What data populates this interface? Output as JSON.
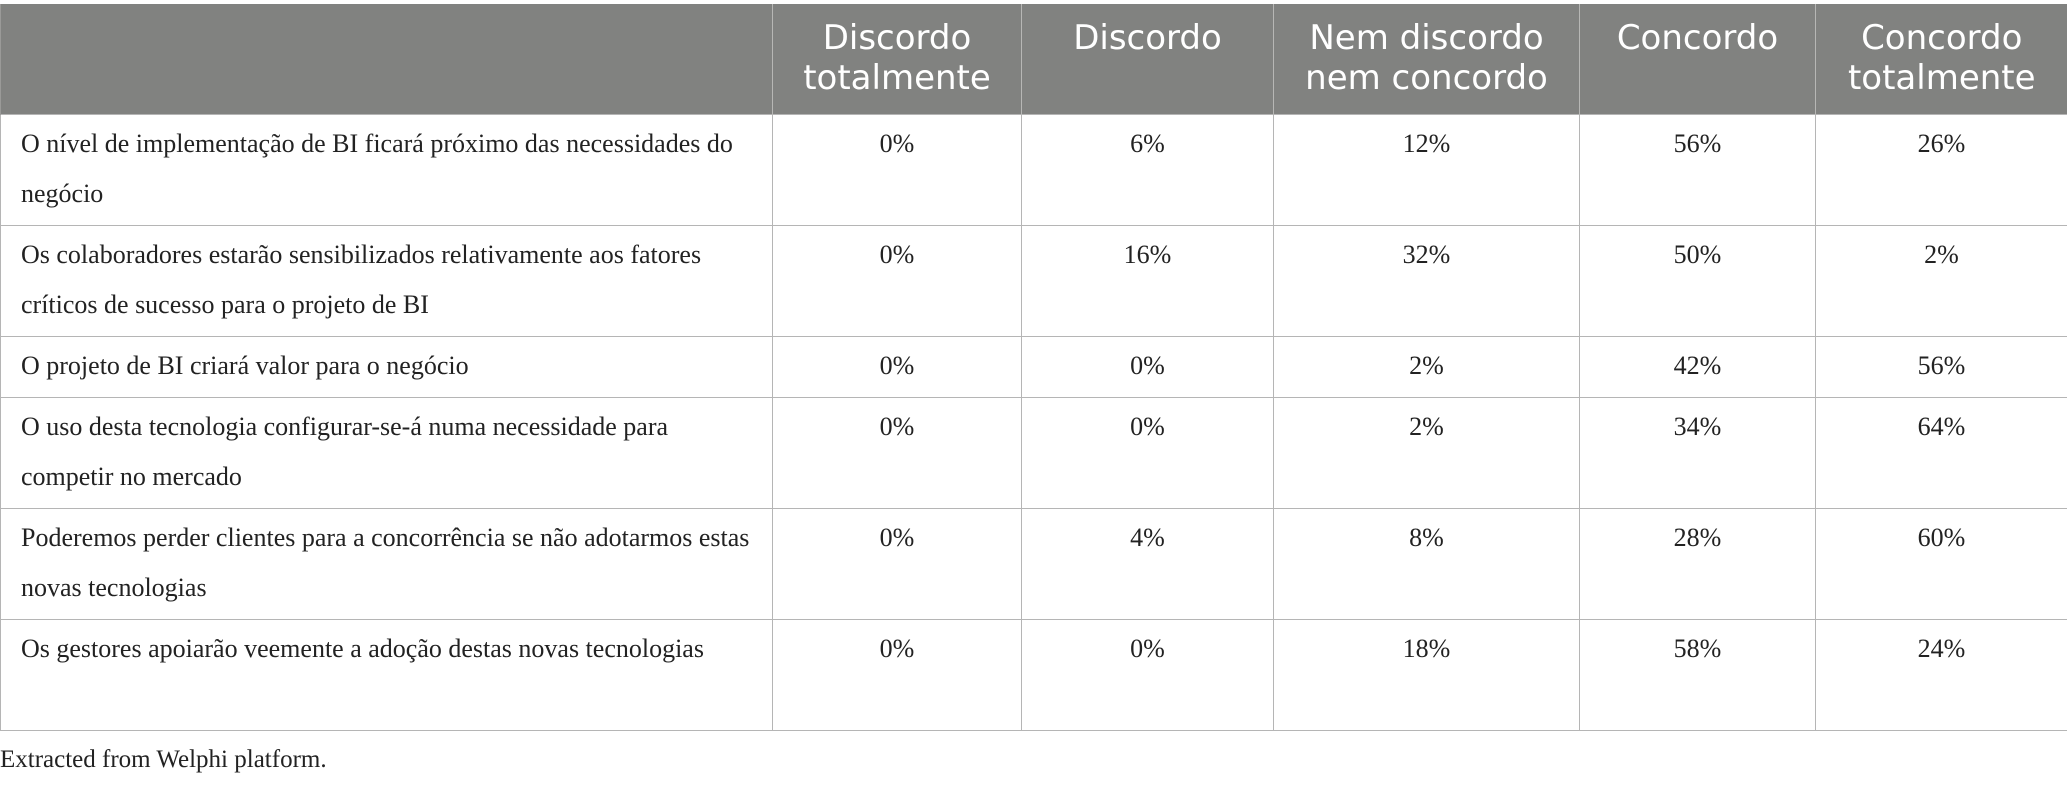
{
  "table": {
    "headers": [
      "",
      "Discordo totalmente",
      "Discordo",
      "Nem discordo nem concordo",
      "Concordo",
      "Concordo totalmente"
    ],
    "rows": [
      {
        "statement": "O nível de implementação de BI ficará próximo das necessidades do negócio",
        "values": [
          "0%",
          "6%",
          "12%",
          "56%",
          "26%"
        ]
      },
      {
        "statement": "Os colaboradores estarão sensibilizados relativamente aos fatores críticos de sucesso para o projeto de BI",
        "values": [
          "0%",
          "16%",
          "32%",
          "50%",
          "2%"
        ]
      },
      {
        "statement": "O projeto de BI criará valor para o negócio",
        "values": [
          "0%",
          "0%",
          "2%",
          "42%",
          "56%"
        ]
      },
      {
        "statement": "O uso desta tecnologia configurar-se-á numa necessidade para competir no mercado",
        "values": [
          "0%",
          "0%",
          "2%",
          "34%",
          "64%"
        ]
      },
      {
        "statement": "Poderemos perder clientes para a concorrência se não adotarmos estas novas tecnologias",
        "values": [
          "0%",
          "4%",
          "8%",
          "28%",
          "60%"
        ]
      },
      {
        "statement": "Os gestores apoiarão veemente a adoção destas novas tecnologias",
        "values": [
          "0%",
          "0%",
          "18%",
          "58%",
          "24%"
        ]
      }
    ]
  },
  "footnote": "Extracted from Welphi platform.",
  "colors": {
    "header_background": "#818280",
    "header_text": "#ffffff",
    "grid_line": "#b5b5b5"
  }
}
